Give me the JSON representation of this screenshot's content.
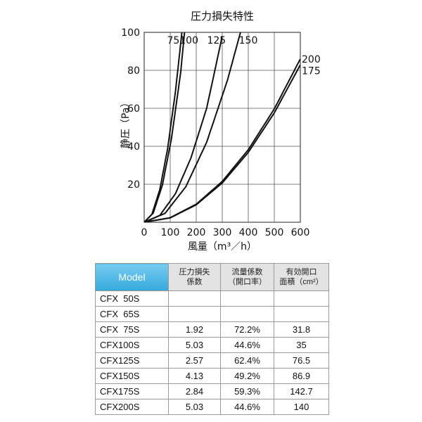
{
  "chart_data": {
    "type": "line",
    "title": "圧力損失特性",
    "xlabel": "風量（m³／h）",
    "ylabel": "静圧（Pa）",
    "xlim": [
      0,
      600
    ],
    "ylim": [
      0,
      100
    ],
    "xticks": [
      "0",
      "100",
      "200",
      "300",
      "400",
      "500",
      "600"
    ],
    "yticks": [
      "20",
      "40",
      "60",
      "80",
      "100"
    ],
    "grid": true,
    "series": [
      {
        "name": "75",
        "x": [
          0,
          30,
          60,
          90,
          120,
          145
        ],
        "y": [
          0,
          4.3,
          17.2,
          38.7,
          68.7,
          100
        ]
      },
      {
        "name": "100",
        "x": [
          0,
          35,
          70,
          105,
          140,
          155
        ],
        "y": [
          0,
          4.9,
          19.6,
          44.2,
          78.6,
          100
        ]
      },
      {
        "name": "125",
        "x": [
          0,
          60,
          120,
          180,
          240,
          300
        ],
        "y": [
          0,
          3.6,
          15.0,
          34.0,
          60.0,
          98.0
        ]
      },
      {
        "name": "150",
        "x": [
          0,
          80,
          160,
          240,
          320,
          370
        ],
        "y": [
          0,
          4.7,
          18.7,
          42.1,
          74.8,
          100
        ]
      },
      {
        "name": "175",
        "x": [
          0,
          100,
          200,
          300,
          400,
          500,
          600
        ],
        "y": [
          0,
          2.3,
          9.2,
          20.7,
          36.8,
          57.6,
          82.9
        ]
      },
      {
        "name": "200",
        "x": [
          0,
          100,
          200,
          300,
          400,
          500,
          600
        ],
        "y": [
          0,
          2.4,
          9.5,
          21.5,
          38.2,
          59.7,
          86.0
        ]
      }
    ],
    "series_labels": [
      "75",
      "100",
      "125",
      "150",
      "200",
      "175"
    ]
  },
  "table": {
    "headers": [
      [
        "Model"
      ],
      [
        "圧力損失",
        "係数"
      ],
      [
        "流量係数",
        "（開口率）"
      ],
      [
        "有効開口",
        "面積（cm²）"
      ]
    ],
    "rows": [
      [
        "CFX  50S",
        "",
        "",
        ""
      ],
      [
        "CFX  65S",
        "",
        "",
        ""
      ],
      [
        "CFX  75S",
        "1.92",
        "72.2%",
        "31.8"
      ],
      [
        "CFX100S",
        "5.03",
        "44.6%",
        "35"
      ],
      [
        "CFX125S",
        "2.57",
        "62.4%",
        "76.5"
      ],
      [
        "CFX150S",
        "4.13",
        "49.2%",
        "86.9"
      ],
      [
        "CFX175S",
        "2.84",
        "59.3%",
        "142.7"
      ],
      [
        "CFX200S",
        "5.03",
        "44.6%",
        "140"
      ]
    ]
  },
  "colors": {
    "curve": "#111111",
    "grid": "#555555",
    "header_accent": "#3aaee0"
  }
}
